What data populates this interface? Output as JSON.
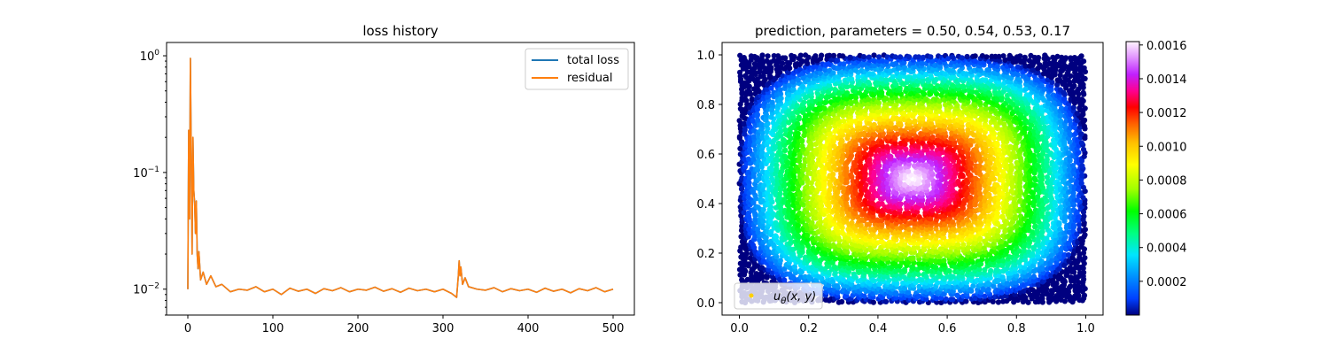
{
  "chart_data": [
    {
      "type": "line",
      "title": "loss history",
      "xlabel": "",
      "ylabel": "",
      "yscale": "log",
      "xlim": [
        -25,
        525
      ],
      "ylim": [
        0.006,
        1.3
      ],
      "x_ticks": [
        0,
        100,
        200,
        300,
        400,
        500
      ],
      "x_tick_labels": [
        "0",
        "100",
        "200",
        "300",
        "400",
        "500"
      ],
      "y_ticks": [
        0.01,
        0.1,
        1
      ],
      "y_tick_labels": [
        {
          "base": "10",
          "exp": "−2"
        },
        {
          "base": "10",
          "exp": "−1"
        },
        {
          "base": "10",
          "exp": "0"
        }
      ],
      "legend_position": "top-right",
      "series": [
        {
          "name": "total loss",
          "color": "#1f77b4",
          "points": [
            [
              0,
              0.01
            ],
            [
              1,
              0.23
            ],
            [
              2,
              0.04
            ],
            [
              3,
              0.95
            ],
            [
              4,
              0.13
            ],
            [
              5,
              0.02
            ],
            [
              6,
              0.2
            ],
            [
              7,
              0.07
            ],
            [
              8,
              0.055
            ],
            [
              9,
              0.03
            ],
            [
              10,
              0.057
            ],
            [
              11,
              0.02
            ],
            [
              12,
              0.015
            ],
            [
              13,
              0.021
            ],
            [
              15,
              0.012
            ],
            [
              18,
              0.014
            ],
            [
              22,
              0.011
            ],
            [
              27,
              0.013
            ],
            [
              33,
              0.0105
            ],
            [
              40,
              0.011
            ],
            [
              50,
              0.0095
            ],
            [
              60,
              0.01
            ],
            [
              70,
              0.0098
            ],
            [
              80,
              0.0105
            ],
            [
              90,
              0.0095
            ],
            [
              100,
              0.01
            ],
            [
              110,
              0.009
            ],
            [
              120,
              0.0102
            ],
            [
              130,
              0.0096
            ],
            [
              140,
              0.01
            ],
            [
              150,
              0.0092
            ],
            [
              160,
              0.0101
            ],
            [
              170,
              0.0097
            ],
            [
              180,
              0.0103
            ],
            [
              190,
              0.0095
            ],
            [
              200,
              0.01
            ],
            [
              210,
              0.0098
            ],
            [
              220,
              0.0104
            ],
            [
              230,
              0.0096
            ],
            [
              240,
              0.0101
            ],
            [
              250,
              0.0094
            ],
            [
              260,
              0.0102
            ],
            [
              270,
              0.0097
            ],
            [
              280,
              0.01
            ],
            [
              290,
              0.0095
            ],
            [
              300,
              0.01
            ],
            [
              310,
              0.0092
            ],
            [
              316,
              0.0085
            ],
            [
              318,
              0.013
            ],
            [
              319,
              0.0175
            ],
            [
              320,
              0.013
            ],
            [
              321,
              0.0155
            ],
            [
              323,
              0.011
            ],
            [
              326,
              0.0125
            ],
            [
              330,
              0.0105
            ],
            [
              340,
              0.01
            ],
            [
              350,
              0.0098
            ],
            [
              360,
              0.0103
            ],
            [
              370,
              0.0095
            ],
            [
              380,
              0.0101
            ],
            [
              390,
              0.0097
            ],
            [
              400,
              0.01
            ],
            [
              410,
              0.0094
            ],
            [
              420,
              0.0102
            ],
            [
              430,
              0.0096
            ],
            [
              440,
              0.01
            ],
            [
              450,
              0.0093
            ],
            [
              460,
              0.0101
            ],
            [
              470,
              0.0097
            ],
            [
              480,
              0.0103
            ],
            [
              490,
              0.0095
            ],
            [
              500,
              0.01
            ]
          ]
        },
        {
          "name": "residual",
          "color": "#ff7f0e",
          "points": [
            [
              0,
              0.01
            ],
            [
              1,
              0.23
            ],
            [
              2,
              0.04
            ],
            [
              3,
              0.95
            ],
            [
              4,
              0.13
            ],
            [
              5,
              0.02
            ],
            [
              6,
              0.2
            ],
            [
              7,
              0.07
            ],
            [
              8,
              0.055
            ],
            [
              9,
              0.03
            ],
            [
              10,
              0.057
            ],
            [
              11,
              0.02
            ],
            [
              12,
              0.015
            ],
            [
              13,
              0.021
            ],
            [
              15,
              0.012
            ],
            [
              18,
              0.014
            ],
            [
              22,
              0.011
            ],
            [
              27,
              0.013
            ],
            [
              33,
              0.0105
            ],
            [
              40,
              0.011
            ],
            [
              50,
              0.0095
            ],
            [
              60,
              0.01
            ],
            [
              70,
              0.0098
            ],
            [
              80,
              0.0105
            ],
            [
              90,
              0.0095
            ],
            [
              100,
              0.01
            ],
            [
              110,
              0.009
            ],
            [
              120,
              0.0102
            ],
            [
              130,
              0.0096
            ],
            [
              140,
              0.01
            ],
            [
              150,
              0.0092
            ],
            [
              160,
              0.0101
            ],
            [
              170,
              0.0097
            ],
            [
              180,
              0.0103
            ],
            [
              190,
              0.0095
            ],
            [
              200,
              0.01
            ],
            [
              210,
              0.0098
            ],
            [
              220,
              0.0104
            ],
            [
              230,
              0.0096
            ],
            [
              240,
              0.0101
            ],
            [
              250,
              0.0094
            ],
            [
              260,
              0.0102
            ],
            [
              270,
              0.0097
            ],
            [
              280,
              0.01
            ],
            [
              290,
              0.0095
            ],
            [
              300,
              0.01
            ],
            [
              310,
              0.0092
            ],
            [
              316,
              0.0085
            ],
            [
              318,
              0.013
            ],
            [
              319,
              0.0175
            ],
            [
              320,
              0.013
            ],
            [
              321,
              0.0155
            ],
            [
              323,
              0.011
            ],
            [
              326,
              0.0125
            ],
            [
              330,
              0.0105
            ],
            [
              340,
              0.01
            ],
            [
              350,
              0.0098
            ],
            [
              360,
              0.0103
            ],
            [
              370,
              0.0095
            ],
            [
              380,
              0.0101
            ],
            [
              390,
              0.0097
            ],
            [
              400,
              0.01
            ],
            [
              410,
              0.0094
            ],
            [
              420,
              0.0102
            ],
            [
              430,
              0.0096
            ],
            [
              440,
              0.01
            ],
            [
              450,
              0.0093
            ],
            [
              460,
              0.0101
            ],
            [
              470,
              0.0097
            ],
            [
              480,
              0.0103
            ],
            [
              490,
              0.0095
            ],
            [
              500,
              0.01
            ]
          ]
        }
      ]
    },
    {
      "type": "heatmap",
      "title": "prediction, parameters = 0.50, 0.54, 0.53, 0.17",
      "xlabel": "",
      "ylabel": "",
      "xlim": [
        -0.05,
        1.05
      ],
      "ylim": [
        -0.05,
        1.05
      ],
      "x_ticks": [
        0.0,
        0.2,
        0.4,
        0.6,
        0.8,
        1.0
      ],
      "x_tick_labels": [
        "0.0",
        "0.2",
        "0.4",
        "0.6",
        "0.8",
        "1.0"
      ],
      "y_ticks": [
        0.0,
        0.2,
        0.4,
        0.6,
        0.8,
        1.0
      ],
      "y_tick_labels": [
        "0.0",
        "0.2",
        "0.4",
        "0.6",
        "0.8",
        "1.0"
      ],
      "field_center": [
        0.5,
        0.5
      ],
      "field_max": 0.00162,
      "field_min": 0.0,
      "colormap": "gist_ncar",
      "colormap_stops": [
        [
          0.0,
          "#000080"
        ],
        [
          0.06,
          "#0040ff"
        ],
        [
          0.14,
          "#0090ff"
        ],
        [
          0.22,
          "#00e5ff"
        ],
        [
          0.3,
          "#00ff80"
        ],
        [
          0.38,
          "#00ff00"
        ],
        [
          0.46,
          "#a0ff00"
        ],
        [
          0.55,
          "#ffff00"
        ],
        [
          0.63,
          "#ffc000"
        ],
        [
          0.7,
          "#ff6000"
        ],
        [
          0.76,
          "#ff0000"
        ],
        [
          0.82,
          "#ff0090"
        ],
        [
          0.88,
          "#c020ff"
        ],
        [
          0.94,
          "#e090ff"
        ],
        [
          1.0,
          "#fff5ff"
        ]
      ],
      "colorbar": {
        "min": 0.0,
        "max": 0.00162,
        "ticks": [
          0.0002,
          0.0004,
          0.0006,
          0.0008,
          0.001,
          0.0012,
          0.0014,
          0.0016
        ],
        "tick_labels": [
          "0.0002",
          "0.0004",
          "0.0006",
          "0.0008",
          "0.0010",
          "0.0012",
          "0.0014",
          "0.0016"
        ]
      },
      "legend_position": "lower-left",
      "legend": {
        "marker_color": "#ffd000",
        "label_parts": [
          "u",
          "θ",
          "(x, y)"
        ]
      }
    }
  ]
}
